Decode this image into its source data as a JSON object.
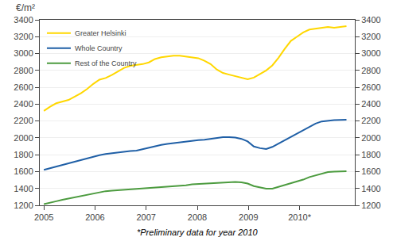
{
  "chart_data": {
    "type": "line",
    "y_label": "€/m²",
    "annotations": [
      "*Preliminary data for year 2010"
    ],
    "x": [
      2005,
      2005.120749,
      2005.241498,
      2005.362247,
      2005.482996,
      2005.603745,
      2005.724494,
      2005.845243,
      2005.965992,
      2006.086741,
      2006.20749,
      2006.328239,
      2006.448988,
      2006.569737,
      2006.690486,
      2006.811235,
      2006.931984,
      2007.052733,
      2007.173482,
      2007.294231,
      2007.41498,
      2007.535729,
      2007.656478,
      2007.777227,
      2007.897976,
      2008.018724,
      2008.139473,
      2008.260222,
      2008.380971,
      2008.50172,
      2008.622469,
      2008.743218,
      2008.863967,
      2008.984716,
      2009.105465,
      2009.226214,
      2009.346963,
      2009.467712,
      2009.588461,
      2009.70921,
      2009.829959,
      2009.950708,
      2010.071457,
      2010.192206,
      2010.312955,
      2010.433704,
      2010.554453,
      2010.675202,
      2010.795951,
      2010.9167
    ],
    "series": [
      {
        "name": "Greater Helsinki",
        "color": "#FFD700",
        "values": [
          2320,
          2370,
          2410,
          2430,
          2450,
          2490,
          2530,
          2580,
          2640,
          2690,
          2710,
          2745,
          2790,
          2830,
          2855,
          2865,
          2875,
          2895,
          2935,
          2955,
          2965,
          2975,
          2975,
          2965,
          2955,
          2945,
          2915,
          2875,
          2810,
          2770,
          2750,
          2730,
          2710,
          2695,
          2715,
          2755,
          2800,
          2860,
          2950,
          3055,
          3150,
          3200,
          3250,
          3285,
          3295,
          3305,
          3315,
          3305,
          3315,
          3325
        ]
      },
      {
        "name": "Whole Country",
        "color": "#1F5FA6",
        "values": [
          1620,
          1640,
          1658,
          1675,
          1695,
          1715,
          1735,
          1755,
          1775,
          1795,
          1808,
          1818,
          1828,
          1838,
          1843,
          1848,
          1865,
          1885,
          1900,
          1916,
          1928,
          1938,
          1948,
          1958,
          1968,
          1973,
          1978,
          1988,
          1998,
          2008,
          2008,
          2003,
          1988,
          1958,
          1898,
          1878,
          1868,
          1893,
          1933,
          1973,
          2013,
          2053,
          2093,
          2133,
          2170,
          2195,
          2205,
          2210,
          2213,
          2215
        ]
      },
      {
        "name": "Rest of the Country",
        "color": "#4C9B3F",
        "values": [
          1215,
          1228,
          1248,
          1265,
          1280,
          1295,
          1315,
          1330,
          1345,
          1358,
          1368,
          1373,
          1378,
          1383,
          1388,
          1393,
          1398,
          1403,
          1408,
          1413,
          1418,
          1423,
          1428,
          1438,
          1448,
          1453,
          1458,
          1463,
          1468,
          1473,
          1478,
          1478,
          1472,
          1458,
          1428,
          1413,
          1398,
          1398,
          1418,
          1440,
          1458,
          1478,
          1505,
          1535,
          1555,
          1575,
          1595,
          1600,
          1603,
          1605
        ]
      }
    ],
    "xlim": [
      2004.92,
      2011.08
    ],
    "xticks": [
      2005,
      2006,
      2007,
      2008,
      2009,
      {
        "value": 2010,
        "label": "2010*"
      }
    ],
    "ylim": [
      1200,
      3400
    ],
    "yticks": [
      1200,
      1400,
      1600,
      1800,
      2000,
      2200,
      2400,
      2600,
      2800,
      3000,
      3200,
      3400
    ],
    "y2lim": [
      1200,
      3400
    ],
    "y2ticks": [
      1200,
      1400,
      1600,
      1800,
      2000,
      2200,
      2400,
      2600,
      2800,
      3000,
      3200,
      3400
    ],
    "grid": true,
    "legend": "upper left"
  }
}
